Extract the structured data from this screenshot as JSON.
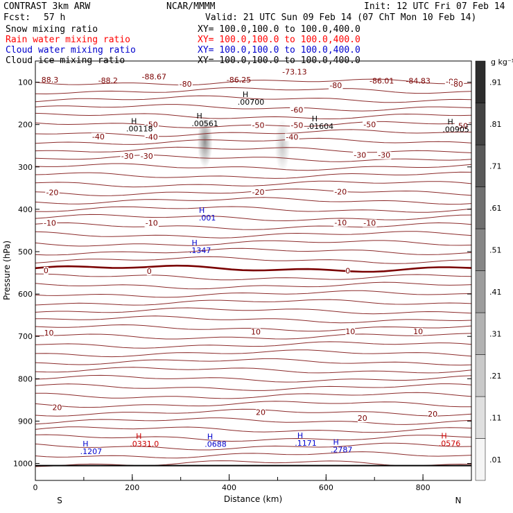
{
  "header": {
    "model": "CONTRAST   3km ARW",
    "org": "NCAR/MMMM",
    "init": "Init: 12 UTC Fri 07 Feb 14",
    "fcst_label": "Fcst:",
    "fcst_value": "57 h",
    "valid": "Valid: 21 UTC Sun 09 Feb 14 (07 ChT Mon 10 Feb 14)"
  },
  "legend": [
    {
      "label": "Snow mixing ratio",
      "xy": "XY= 100.0,100.0 to 100.0,400.0",
      "color": "#000000"
    },
    {
      "label": "Rain water mixing ratio",
      "xy": "XY= 100.0,100.0 to 100.0,400.0",
      "color": "#ff0000"
    },
    {
      "label": "Cloud water mixing ratio",
      "xy": "XY= 100.0,100.0 to 100.0,400.0",
      "color": "#0000cc"
    },
    {
      "label": "Cloud ice mixing ratio",
      "xy": "XY= 100.0,100.0 to 100.0,400.0",
      "color": "#000000"
    }
  ],
  "chart_data": {
    "type": "cross-section",
    "xlabel": "Distance (km)",
    "ylabel": "Pressure (hPa)",
    "x_ticks": [
      "0",
      "200",
      "400",
      "600",
      "800"
    ],
    "x_tick_values": [
      0,
      200,
      400,
      600,
      800
    ],
    "xlim": [
      0,
      900
    ],
    "y_ticks": [
      "100",
      "200",
      "300",
      "400",
      "500",
      "600",
      "700",
      "800",
      "900",
      "1000"
    ],
    "y_tick_values": [
      100,
      200,
      300,
      400,
      500,
      600,
      700,
      800,
      900,
      1000
    ],
    "ylim": [
      50,
      1040
    ],
    "x_end_labels": {
      "left": "S",
      "right": "N"
    },
    "colorbar": {
      "unit": "g kg⁻¹",
      "ticks": [
        ".01",
        ".11",
        ".21",
        ".31",
        ".41",
        ".51",
        ".61",
        ".71",
        ".81",
        ".91"
      ],
      "tick_values": [
        0.01,
        0.11,
        0.21,
        0.31,
        0.41,
        0.51,
        0.61,
        0.71,
        0.81,
        0.91
      ],
      "range": [
        0.01,
        1.01
      ]
    },
    "temperature_contour_labels": [
      {
        "text": "-80",
        "x": 860,
        "p": 103
      },
      {
        "text": "-80",
        "x": 310,
        "p": 109
      },
      {
        "text": "-80",
        "x": 620,
        "p": 112
      },
      {
        "text": "-80",
        "x": 870,
        "p": 109
      },
      {
        "text": "-60",
        "x": 540,
        "p": 170
      },
      {
        "text": "-50",
        "x": 240,
        "p": 205
      },
      {
        "text": "-50",
        "x": 460,
        "p": 206
      },
      {
        "text": "-50",
        "x": 540,
        "p": 206
      },
      {
        "text": "-50",
        "x": 690,
        "p": 205
      },
      {
        "text": "-50",
        "x": 880,
        "p": 208
      },
      {
        "text": "-40",
        "x": 130,
        "p": 233
      },
      {
        "text": "-40",
        "x": 240,
        "p": 234
      },
      {
        "text": "-40",
        "x": 530,
        "p": 234
      },
      {
        "text": "-30",
        "x": 190,
        "p": 279
      },
      {
        "text": "-30",
        "x": 230,
        "p": 279
      },
      {
        "text": "-30",
        "x": 670,
        "p": 277
      },
      {
        "text": "-30",
        "x": 720,
        "p": 277
      },
      {
        "text": "-20",
        "x": 35,
        "p": 365
      },
      {
        "text": "-20",
        "x": 460,
        "p": 364
      },
      {
        "text": "-20",
        "x": 630,
        "p": 363
      },
      {
        "text": "-10",
        "x": 30,
        "p": 437
      },
      {
        "text": "-10",
        "x": 240,
        "p": 437
      },
      {
        "text": "-10",
        "x": 630,
        "p": 436
      },
      {
        "text": "-10",
        "x": 690,
        "p": 437
      },
      {
        "text": "0",
        "x": 22,
        "p": 549
      },
      {
        "text": "0",
        "x": 235,
        "p": 551
      },
      {
        "text": "0",
        "x": 645,
        "p": 550
      },
      {
        "text": "10",
        "x": 28,
        "p": 696
      },
      {
        "text": "10",
        "x": 455,
        "p": 694
      },
      {
        "text": "10",
        "x": 650,
        "p": 693
      },
      {
        "text": "10",
        "x": 790,
        "p": 693
      },
      {
        "text": "20",
        "x": 45,
        "p": 872
      },
      {
        "text": "20",
        "x": 465,
        "p": 884
      },
      {
        "text": "20",
        "x": 675,
        "p": 898
      },
      {
        "text": "20",
        "x": 820,
        "p": 888
      }
    ],
    "low_labels": [
      {
        "text": "88.3",
        "x": 30,
        "p": 101
      },
      {
        "text": "-88.2",
        "x": 150,
        "p": 102
      },
      {
        "text": "-88.67",
        "x": 245,
        "p": 93
      },
      {
        "text": "-86.25",
        "x": 420,
        "p": 101
      },
      {
        "text": "-73.13",
        "x": 535,
        "p": 82
      },
      {
        "text": "-86.01",
        "x": 715,
        "p": 103
      },
      {
        "text": "-84.83",
        "x": 790,
        "p": 103
      }
    ],
    "max_labels": [
      {
        "text": ".00118",
        "x": 215,
        "p": 216,
        "color": "#000000"
      },
      {
        "text": ".00561",
        "x": 350,
        "p": 204,
        "color": "#000000"
      },
      {
        "text": ".00700",
        "x": 445,
        "p": 153,
        "color": "#000000"
      },
      {
        "text": ".01604",
        "x": 588,
        "p": 210,
        "color": "#000000"
      },
      {
        "text": ".00905",
        "x": 868,
        "p": 218,
        "color": "#000000"
      },
      {
        "text": ".001",
        "x": 355,
        "p": 426,
        "color": "#0000cc"
      },
      {
        "text": ".1347",
        "x": 340,
        "p": 503,
        "color": "#0000cc"
      },
      {
        "text": ".1207",
        "x": 115,
        "p": 978,
        "color": "#0000cc"
      },
      {
        "text": ".0331.0",
        "x": 225,
        "p": 960,
        "color": "#cc0000"
      },
      {
        "text": ".0688",
        "x": 372,
        "p": 961,
        "color": "#0000cc"
      },
      {
        "text": ".1171",
        "x": 558,
        "p": 958,
        "color": "#0000cc"
      },
      {
        "text": ".2787",
        "x": 632,
        "p": 974,
        "color": "#0000cc"
      },
      {
        "text": ".0576",
        "x": 855,
        "p": 959,
        "color": "#cc0000"
      }
    ],
    "cloud_ice_shading": [
      {
        "x": 350,
        "p": 240,
        "peak": 0.6
      },
      {
        "x": 510,
        "p": 250,
        "peak": 0.3
      }
    ]
  }
}
